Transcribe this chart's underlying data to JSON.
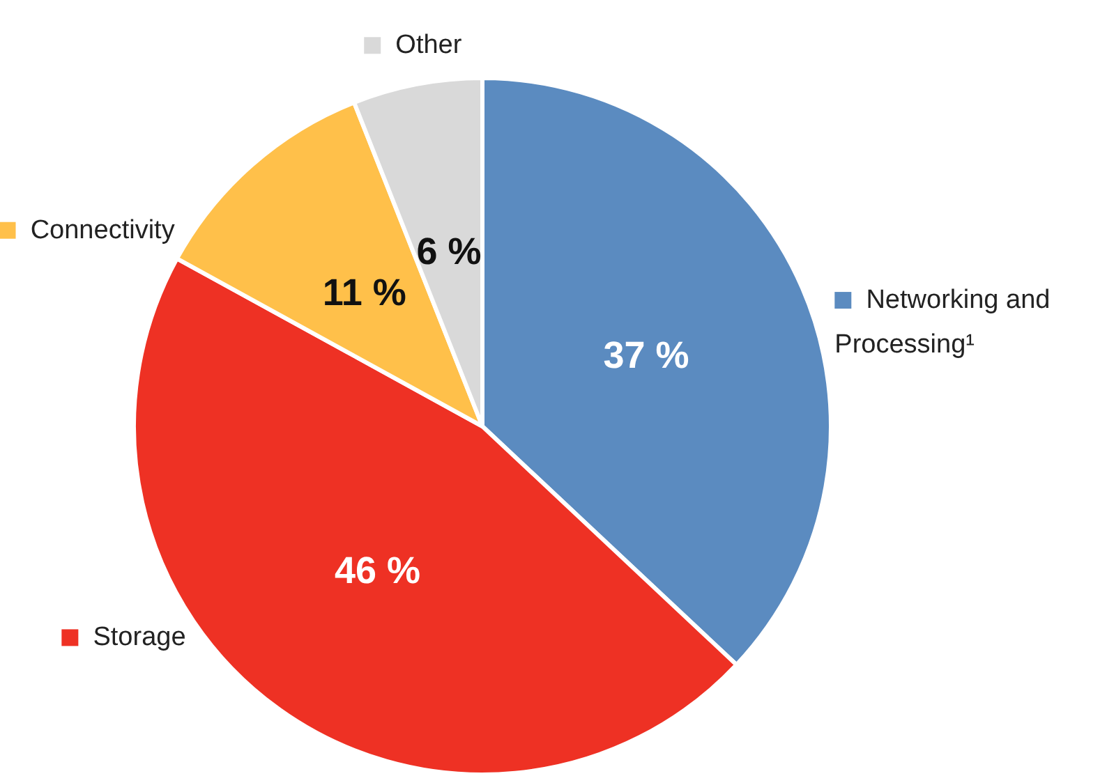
{
  "chart_data": {
    "type": "pie",
    "categories": [
      "Networking and Processing¹",
      "Storage",
      "Connectivity",
      "Other"
    ],
    "values": [
      37,
      46,
      11,
      6
    ],
    "colors": [
      "#5b8bc0",
      "#ee3124",
      "#ffc04a",
      "#d9d9d9"
    ],
    "value_labels": [
      "37 %",
      "46 %",
      "11 %",
      "6 %"
    ],
    "legend": "top right"
  }
}
